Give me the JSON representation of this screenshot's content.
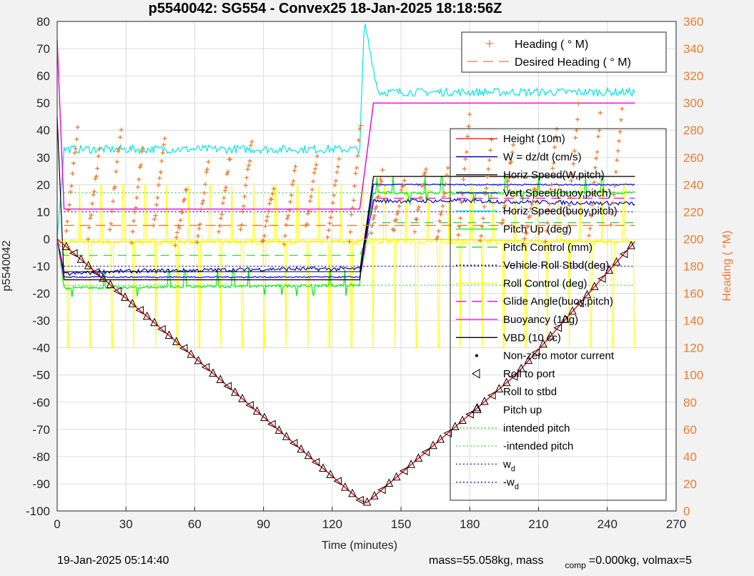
{
  "chart_data": {
    "type": "line",
    "title": "p5540042: SG554 - Convex25 18-Jan-2025 18:18:56Z",
    "xlabel": "Time (minutes)",
    "ylabel": "p5540042",
    "ylabel_right": "Heading (  °M)",
    "xlim": [
      0,
      270
    ],
    "ylim": [
      -100,
      80
    ],
    "ylim_right": [
      0,
      360
    ],
    "x_ticks": [
      0,
      30,
      60,
      90,
      120,
      150,
      180,
      210,
      240,
      270
    ],
    "y_ticks": [
      -100,
      -90,
      -80,
      -70,
      -60,
      -50,
      -40,
      -30,
      -20,
      -10,
      0,
      10,
      20,
      30,
      40,
      50,
      60,
      70,
      80
    ],
    "y_ticks_right": [
      0,
      20,
      40,
      60,
      80,
      100,
      120,
      140,
      160,
      180,
      200,
      220,
      240,
      260,
      280,
      300,
      320,
      340,
      360
    ],
    "grid": true,
    "heading_legend": [
      "Heading (  ° M)",
      "Desired Heading (    ° M)"
    ],
    "legend": [
      "Height (10m)",
      "W = dz/dt (cm/s)",
      "Horiz Speed(W,pitch)",
      "Vert Speed(buoy,pitch)",
      "Horiz Speed(buoy,pitch)",
      "Pitch Up (deg)",
      "Pitch Control (mm)",
      "Vehicle Roll Stbd(deg)",
      "Roll Control (deg)",
      "Glide Angle(buoy,pitch)",
      "Buoyancy (10g)",
      "VBD (10 cc)",
      "Non-zero motor current",
      "Roll to port",
      "Roll to stbd",
      "Pitch up",
      "intended pitch",
      "-intended pitch",
      "w",
      "-w"
    ],
    "legend_sub": "d",
    "series": [
      {
        "name": "Height (10m)",
        "x": [
          0,
          66,
          132,
          135,
          200,
          252
        ],
        "values": [
          0,
          -48,
          -96,
          -97,
          -50,
          -1
        ]
      },
      {
        "name": "W = dz/dt (cm/s)",
        "x": [
          0,
          3,
          20,
          60,
          100,
          132,
          138,
          180,
          252
        ],
        "values": [
          0,
          -13,
          -12,
          -11.5,
          -11,
          -11,
          14,
          14,
          13
        ]
      },
      {
        "name": "Horiz Speed(W,pitch)",
        "x": [
          0,
          3,
          132,
          138,
          252
        ],
        "values": [
          0,
          -12,
          -12,
          23,
          23
        ]
      },
      {
        "name": "Vert Speed(buoy,pitch)",
        "x": [
          0,
          3,
          132,
          138,
          252
        ],
        "values": [
          0,
          -14,
          -14,
          20,
          20
        ]
      },
      {
        "name": "Horiz Speed(buoy,pitch)",
        "x": [
          0,
          3,
          60,
          132,
          134,
          140,
          252
        ],
        "values": [
          0,
          33,
          33,
          33,
          80,
          54,
          54
        ]
      },
      {
        "name": "Pitch Up (deg)",
        "x": [
          0,
          3,
          132,
          138,
          252
        ],
        "values": [
          0,
          -18,
          -17,
          17,
          17
        ]
      },
      {
        "name": "Pitch Control (mm)",
        "x": [
          0,
          3,
          132,
          138,
          252
        ],
        "values": [
          0,
          -6,
          -6,
          6,
          6
        ]
      },
      {
        "name": "Roll Control (deg)",
        "x": [
          0,
          130,
          135,
          252
        ],
        "values": [
          -1,
          -1,
          0,
          -1
        ]
      },
      {
        "name": "Glide Angle(buoy,pitch)",
        "x": [
          0,
          3,
          132,
          138,
          252
        ],
        "values": [
          0,
          -15,
          -15,
          15,
          15
        ]
      },
      {
        "name": "Buoyancy (10g)",
        "x": [
          0,
          3,
          132,
          138,
          252
        ],
        "values": [
          73,
          11,
          11,
          50,
          50
        ]
      },
      {
        "name": "VBD (10 cc)",
        "x": [
          0,
          3,
          132,
          138,
          252
        ],
        "values": [
          45,
          -15,
          -15,
          23,
          23
        ]
      }
    ],
    "reference_lines": [
      {
        "name": "intended pitch",
        "value": 17
      },
      {
        "name": "-intended pitch",
        "value": -17
      },
      {
        "name": "w_d",
        "value": 10
      },
      {
        "name": "-w_d",
        "value": -10
      }
    ],
    "heading_series": {
      "name": "Heading",
      "desired": 210
    },
    "footer_left": "19-Jan-2025 05:14:40",
    "footer_right": "mass=55.058kg, mass",
    "footer_sub": "comp",
    "footer_right2": "=0.000kg, volmax=5"
  },
  "colors": {
    "height": "#ff0000",
    "w": "#0000cc",
    "horiz_w": "#000000",
    "vert_buoy": "#0000ff",
    "horiz_buoy": "#00e5e5",
    "pitch_up": "#00ee00",
    "pitch_ctl": "#33cc33",
    "roll": "#ffff00",
    "roll_ctl": "#e5e500",
    "glide": "#ff00ff",
    "buoy": "#e600e6",
    "vbd": "#000000",
    "heading": "#f27a2e",
    "grid": "#dcdcdc"
  }
}
